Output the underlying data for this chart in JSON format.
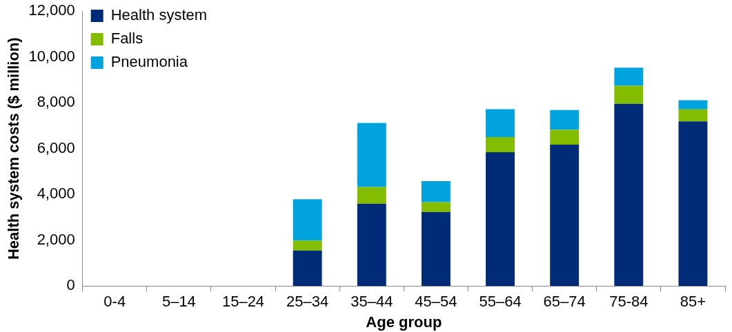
{
  "chart_data": {
    "type": "bar",
    "stacked": true,
    "xlabel": "Age group",
    "ylabel": "Health system costs ($ million)",
    "categories": [
      "0-4",
      "5–14",
      "15–24",
      "25–34",
      "35–44",
      "45–54",
      "55–64",
      "65–74",
      "75-84",
      "85+"
    ],
    "series": [
      {
        "name": "Health system",
        "color": "#002b76",
        "values": [
          0,
          0,
          0,
          1550,
          3590,
          3230,
          5840,
          6170,
          7950,
          7190
        ]
      },
      {
        "name": "Falls",
        "color": "#84bd00",
        "values": [
          0,
          0,
          0,
          430,
          730,
          430,
          660,
          650,
          790,
          520
        ]
      },
      {
        "name": "Pneumonia",
        "color": "#00a3de",
        "values": [
          0,
          0,
          0,
          1810,
          2800,
          920,
          1220,
          860,
          790,
          400
        ]
      }
    ],
    "ylim": [
      0,
      12000
    ],
    "yticks": [
      {
        "value": 0,
        "label": "0"
      },
      {
        "value": 2000,
        "label": "2,000"
      },
      {
        "value": 4000,
        "label": "4,000"
      },
      {
        "value": 6000,
        "label": "6,000"
      },
      {
        "value": 8000,
        "label": "8,000"
      },
      {
        "value": 10000,
        "label": "10,000"
      },
      {
        "value": 12000,
        "label": "12,000"
      }
    ],
    "grid": false,
    "legend": "top left"
  }
}
